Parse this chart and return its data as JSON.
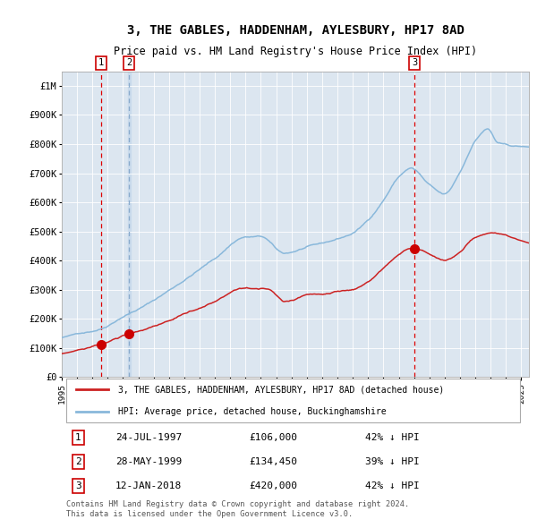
{
  "title": "3, THE GABLES, HADDENHAM, AYLESBURY, HP17 8AD",
  "subtitle": "Price paid vs. HM Land Registry's House Price Index (HPI)",
  "title_fontsize": 10,
  "subtitle_fontsize": 8.5,
  "background_color": "#ffffff",
  "plot_bg_color": "#dce6f0",
  "grid_color": "#ffffff",
  "transactions": [
    {
      "label": "1",
      "date_dec": 1997.56,
      "price": 106000,
      "note": "24-JUL-1997",
      "pct": "42% ↓ HPI"
    },
    {
      "label": "2",
      "date_dec": 1999.4,
      "price": 134450,
      "note": "28-MAY-1999",
      "pct": "39% ↓ HPI"
    },
    {
      "label": "3",
      "date_dec": 2018.03,
      "price": 420000,
      "note": "12-JAN-2018",
      "pct": "42% ↓ HPI"
    }
  ],
  "hpi_line_color": "#89b8db",
  "price_line_color": "#cc2222",
  "dashed_line_color": "#dd0000",
  "marker_color": "#cc0000",
  "legend_entries": [
    "3, THE GABLES, HADDENHAM, AYLESBURY, HP17 8AD (detached house)",
    "HPI: Average price, detached house, Buckinghamshire"
  ],
  "footer_text": "Contains HM Land Registry data © Crown copyright and database right 2024.\nThis data is licensed under the Open Government Licence v3.0.",
  "ylim": [
    0,
    1050000
  ],
  "yticks": [
    0,
    100000,
    200000,
    300000,
    400000,
    500000,
    600000,
    700000,
    800000,
    900000,
    1000000
  ],
  "ytick_labels": [
    "£0",
    "£100K",
    "£200K",
    "£300K",
    "£400K",
    "£500K",
    "£600K",
    "£700K",
    "£800K",
    "£900K",
    "£1M"
  ],
  "xmin": 1995.0,
  "xmax": 2025.5,
  "xticks": [
    1995,
    1996,
    1997,
    1998,
    1999,
    2000,
    2001,
    2002,
    2003,
    2004,
    2005,
    2006,
    2007,
    2008,
    2009,
    2010,
    2011,
    2012,
    2013,
    2014,
    2015,
    2016,
    2017,
    2018,
    2019,
    2020,
    2021,
    2022,
    2023,
    2024,
    2025
  ],
  "hpi_anchors_x": [
    1995,
    1996,
    1997.5,
    1999,
    2000.5,
    2002,
    2003.5,
    2005,
    2007,
    2008,
    2009.5,
    2011,
    2012,
    2013,
    2014,
    2015,
    2016,
    2017,
    2017.8,
    2019,
    2020,
    2021,
    2022,
    2022.8,
    2023.5,
    2024.5,
    2025.5
  ],
  "hpi_anchors_y": [
    135000,
    148000,
    168000,
    215000,
    255000,
    305000,
    360000,
    415000,
    490000,
    490000,
    430000,
    450000,
    460000,
    475000,
    495000,
    540000,
    610000,
    690000,
    720000,
    660000,
    625000,
    700000,
    810000,
    850000,
    800000,
    790000,
    790000
  ],
  "price_anchors_x": [
    1995,
    1996,
    1997.5,
    1999,
    2000.5,
    2002,
    2003.5,
    2005,
    2007,
    2008.5,
    2009.5,
    2011,
    2012,
    2013,
    2014,
    2015,
    2016,
    2017,
    2017.8,
    2019,
    2020,
    2021,
    2022,
    2023,
    2024.5,
    2025.5
  ],
  "price_anchors_y": [
    80000,
    90000,
    108000,
    133000,
    156000,
    183000,
    215000,
    248000,
    300000,
    298000,
    255000,
    275000,
    282000,
    292000,
    300000,
    325000,
    370000,
    415000,
    435000,
    415000,
    395000,
    420000,
    470000,
    480000,
    465000,
    460000
  ]
}
